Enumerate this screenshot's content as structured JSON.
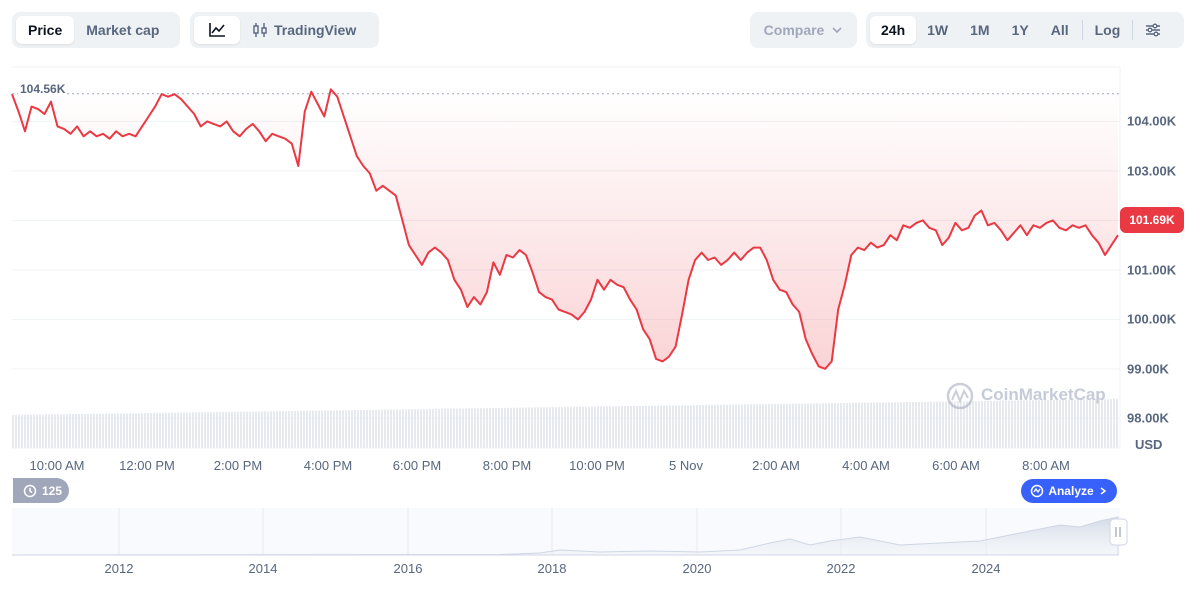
{
  "toolbar": {
    "view_tabs": [
      {
        "label": "Price",
        "active": true
      },
      {
        "label": "Market cap",
        "active": false
      }
    ],
    "chart_tabs": [
      {
        "icon": "line-chart-icon",
        "active": true
      },
      {
        "icon": "candlestick-icon",
        "label": "TradingView",
        "active": false
      }
    ],
    "compare_label": "Compare",
    "ranges": [
      {
        "label": "24h",
        "active": true
      },
      {
        "label": "1W"
      },
      {
        "label": "1M"
      },
      {
        "label": "1Y"
      },
      {
        "label": "All"
      }
    ],
    "log_label": "Log",
    "settings_icon": "sliders-icon"
  },
  "price_label": "104.56K",
  "current_price_label": "101.69K",
  "currency_label": "USD",
  "watermark": "CoinMarketCap",
  "history_count": "125",
  "analyze_label": "Analyze",
  "colors": {
    "line": "#ea3943",
    "accent_up": "#16c784",
    "brand": "#3861fb"
  },
  "chart_data": {
    "type": "line",
    "yticks": [
      "104.00K",
      "103.00K",
      "102.00K",
      "101.00K",
      "100.00K",
      "99.00K",
      "98.00K"
    ],
    "ytick_values": [
      104000,
      103000,
      102000,
      101000,
      100000,
      99000,
      98000
    ],
    "ylim": [
      97400,
      105100
    ],
    "xticks": [
      "10:00 AM",
      "12:00 PM",
      "2:00 PM",
      "4:00 PM",
      "6:00 PM",
      "8:00 PM",
      "10:00 PM",
      "5 Nov",
      "2:00 AM",
      "4:00 AM",
      "6:00 AM",
      "8:00 AM"
    ],
    "reference_line": 104560,
    "series": [
      {
        "values": [
          104550,
          104200,
          103800,
          104300,
          104250,
          104150,
          104400,
          103900,
          103850,
          103750,
          103900,
          103700,
          103800,
          103700,
          103750,
          103650,
          103800,
          103700,
          103750,
          103700,
          103900,
          104100,
          104300,
          104550,
          104500,
          104550,
          104450,
          104300,
          104150,
          103900,
          104000,
          103950,
          103900,
          104000,
          103800,
          103700,
          103850,
          103950,
          103800,
          103600,
          103750,
          103700,
          103650,
          103550,
          103100,
          104200,
          104600,
          104350,
          104100,
          104650,
          104500,
          104100,
          103700,
          103300,
          103100,
          102950,
          102600,
          102700,
          102600,
          102500,
          102000,
          101500,
          101300,
          101100,
          101350,
          101450,
          101350,
          101200,
          100800,
          100600,
          100250,
          100450,
          100300,
          100550,
          101150,
          100900,
          101300,
          101250,
          101400,
          101300,
          100950,
          100550,
          100450,
          100400,
          100200,
          100150,
          100100,
          100000,
          100150,
          100400,
          100800,
          100600,
          100800,
          100700,
          100650,
          100400,
          100200,
          99800,
          99600,
          99200,
          99150,
          99250,
          99450,
          100100,
          100800,
          101200,
          101350,
          101200,
          101250,
          101100,
          101200,
          101350,
          101200,
          101350,
          101450,
          101450,
          101200,
          100800,
          100600,
          100550,
          100300,
          100150,
          99600,
          99300,
          99050,
          99000,
          99150,
          100200,
          100700,
          101300,
          101450,
          101400,
          101550,
          101450,
          101500,
          101700,
          101600,
          101900,
          101850,
          101950,
          102000,
          101850,
          101800,
          101500,
          101650,
          101950,
          101800,
          101850,
          102100,
          102200,
          101900,
          101950,
          101800,
          101600,
          101750,
          101900,
          101700,
          101900,
          101850,
          101950,
          102000,
          101850,
          101800,
          101900,
          101850,
          101900,
          101700,
          101550,
          101300,
          101500,
          101700
        ]
      }
    ]
  },
  "navigator_ticks": [
    "2012",
    "2014",
    "2016",
    "2018",
    "2020",
    "2022",
    "2024"
  ]
}
